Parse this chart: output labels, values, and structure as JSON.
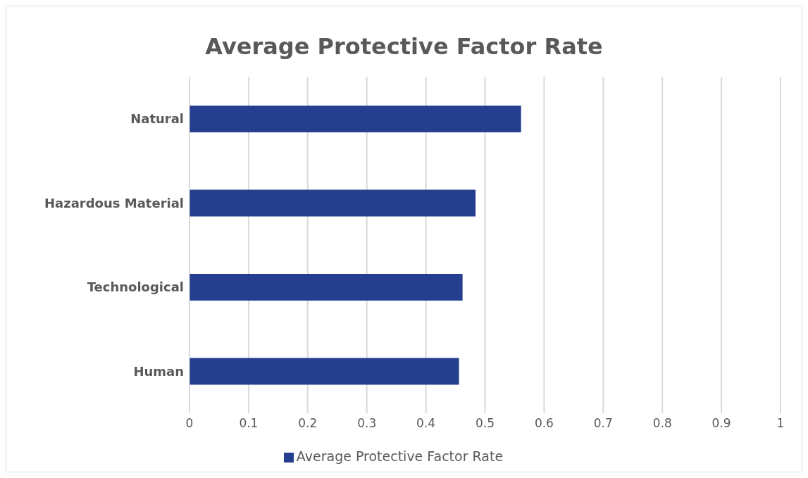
{
  "chart_data": {
    "type": "bar",
    "orientation": "horizontal",
    "title": "Average Protective Factor Rate",
    "categories": [
      "Natural",
      "Hazardous Material",
      "Technological",
      "Human"
    ],
    "series": [
      {
        "name": "Average Protective Factor Rate",
        "color": "#253f8e",
        "values": [
          0.561,
          0.484,
          0.462,
          0.456
        ]
      }
    ],
    "xlim": [
      0,
      1
    ],
    "xticks": [
      0,
      0.1,
      0.2,
      0.3,
      0.4,
      0.5,
      0.6,
      0.7,
      0.8,
      0.9,
      1
    ],
    "grid": "x",
    "legend": "bottom"
  }
}
